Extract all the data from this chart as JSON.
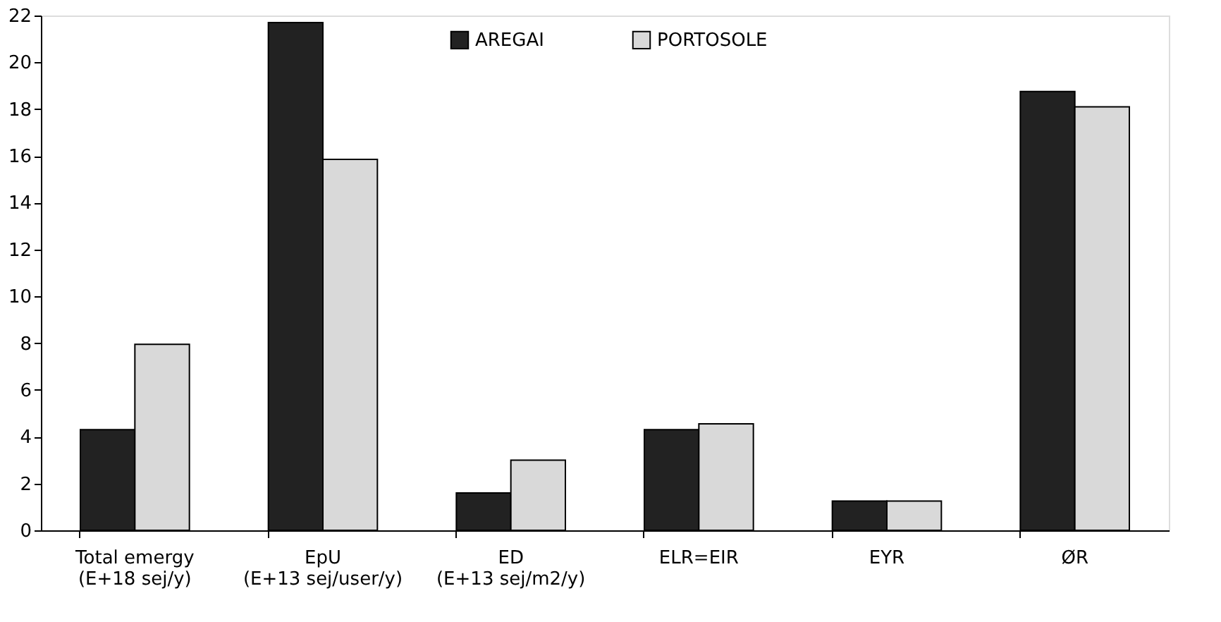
{
  "chart_data": {
    "type": "bar",
    "categories": [
      "Total emergy\n(E+18 sej/y)",
      "EpU\n(E+13 sej/user/y)",
      "ED\n(E+13 sej/m2/y)",
      "ELR=EIR",
      "EYR",
      "ØR"
    ],
    "series": [
      {
        "name": "AREGAI",
        "color": "#222222",
        "values": [
          4.3,
          21.7,
          1.6,
          4.3,
          1.25,
          18.75
        ]
      },
      {
        "name": "PORTOSOLE",
        "color": "#d9d9d9",
        "values": [
          7.95,
          15.85,
          3.0,
          4.55,
          1.25,
          18.1
        ]
      }
    ],
    "ylim": [
      0,
      22
    ],
    "yticks": [
      0,
      2,
      4,
      6,
      8,
      10,
      12,
      14,
      16,
      18,
      20,
      22
    ],
    "grid": false,
    "legend": "top"
  }
}
